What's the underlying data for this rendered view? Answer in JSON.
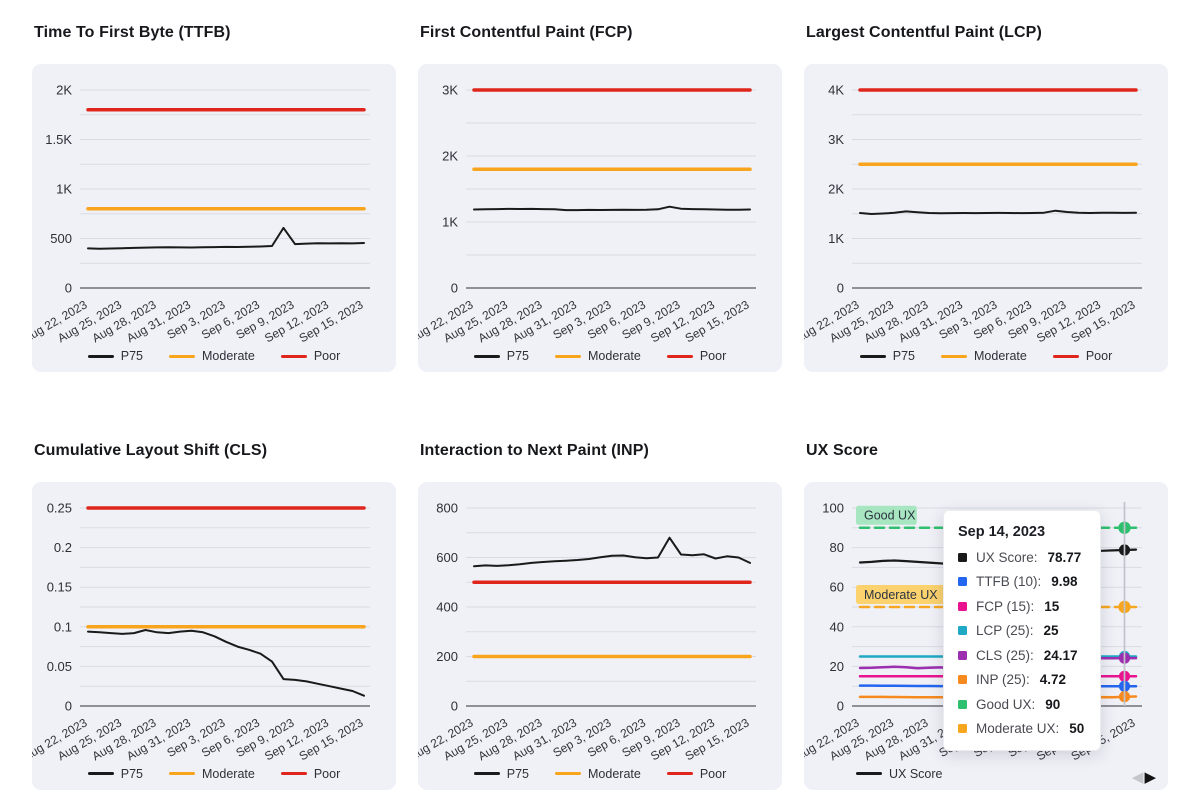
{
  "colors": {
    "panel_bg": "#f0f1f7",
    "grid": "#d9dbe4",
    "axis_zero": "#70707a",
    "crosshair": "#c0c3ca",
    "p75": "#1a1a1a",
    "moderate": "#f9a41d",
    "poor": "#e0261c",
    "good_ux": "#2fc06f",
    "moderate_ux": "#f7a61f",
    "ttfb_score": "#2465f0",
    "fcp_score": "#e91390",
    "lcp_score": "#1fa9c4",
    "cls_score": "#9c2fb0",
    "inp_score": "#f78a1e"
  },
  "x_tick_labels": [
    "Aug 22, 2023",
    "Aug 25, 2023",
    "Aug 28, 2023",
    "Aug 31, 2023",
    "Sep 3, 2023",
    "Sep 6, 2023",
    "Sep 9, 2023",
    "Sep 12, 2023",
    "Sep 15, 2023"
  ],
  "charts": [
    {
      "id": "ttfb",
      "title": "Time To First Byte (TTFB)",
      "type": "line",
      "ylim": [
        0,
        2000
      ],
      "minor_step": 250,
      "yticks": [
        {
          "v": 0,
          "t": "0"
        },
        {
          "v": 500,
          "t": "500"
        },
        {
          "v": 1000,
          "t": "1K"
        },
        {
          "v": 1500,
          "t": "1.5K"
        },
        {
          "v": 2000,
          "t": "2K"
        }
      ],
      "series": [
        {
          "name": "Poor",
          "color": "#e0261c",
          "const": 1800,
          "width": 3.5
        },
        {
          "name": "Moderate",
          "color": "#f9a41d",
          "const": 800,
          "width": 3.5
        },
        {
          "name": "P75",
          "color": "#1a1a1a",
          "width": 2,
          "values": [
            400,
            397,
            399,
            402,
            405,
            408,
            410,
            412,
            410,
            409,
            411,
            413,
            415,
            414,
            416,
            419,
            424,
            607,
            443,
            448,
            452,
            450,
            453,
            451,
            455
          ]
        }
      ],
      "legend": [
        {
          "label": "P75",
          "color": "#1a1a1a"
        },
        {
          "label": "Moderate",
          "color": "#f9a41d"
        },
        {
          "label": "Poor",
          "color": "#e0261c"
        }
      ]
    },
    {
      "id": "fcp",
      "title": "First Contentful Paint (FCP)",
      "type": "line",
      "ylim": [
        0,
        3000
      ],
      "minor_step": 500,
      "yticks": [
        {
          "v": 0,
          "t": "0"
        },
        {
          "v": 1000,
          "t": "1K"
        },
        {
          "v": 2000,
          "t": "2K"
        },
        {
          "v": 3000,
          "t": "3K"
        }
      ],
      "series": [
        {
          "name": "Poor",
          "color": "#e0261c",
          "const": 3000,
          "width": 3.5
        },
        {
          "name": "Moderate",
          "color": "#f9a41d",
          "const": 1800,
          "width": 3.5
        },
        {
          "name": "P75",
          "color": "#1a1a1a",
          "width": 2,
          "values": [
            1190,
            1193,
            1196,
            1198,
            1197,
            1198,
            1196,
            1194,
            1181,
            1180,
            1183,
            1182,
            1184,
            1186,
            1183,
            1185,
            1192,
            1232,
            1201,
            1196,
            1193,
            1190,
            1187,
            1185,
            1189
          ]
        }
      ],
      "legend": [
        {
          "label": "P75",
          "color": "#1a1a1a"
        },
        {
          "label": "Moderate",
          "color": "#f9a41d"
        },
        {
          "label": "Poor",
          "color": "#e0261c"
        }
      ]
    },
    {
      "id": "lcp",
      "title": "Largest Contentful Paint (LCP)",
      "type": "line",
      "ylim": [
        0,
        4000
      ],
      "minor_step": 500,
      "yticks": [
        {
          "v": 0,
          "t": "0"
        },
        {
          "v": 1000,
          "t": "1K"
        },
        {
          "v": 2000,
          "t": "2K"
        },
        {
          "v": 3000,
          "t": "3K"
        },
        {
          "v": 4000,
          "t": "4K"
        }
      ],
      "series": [
        {
          "name": "Poor",
          "color": "#e0261c",
          "const": 4000,
          "width": 3.5
        },
        {
          "name": "Moderate",
          "color": "#f9a41d",
          "const": 2500,
          "width": 3.5
        },
        {
          "name": "P75",
          "color": "#1a1a1a",
          "width": 2,
          "values": [
            1515,
            1495,
            1505,
            1520,
            1548,
            1532,
            1516,
            1512,
            1514,
            1516,
            1513,
            1515,
            1518,
            1516,
            1514,
            1516,
            1522,
            1562,
            1535,
            1522,
            1516,
            1519,
            1521,
            1518,
            1521
          ]
        }
      ],
      "legend": [
        {
          "label": "P75",
          "color": "#1a1a1a"
        },
        {
          "label": "Moderate",
          "color": "#f9a41d"
        },
        {
          "label": "Poor",
          "color": "#e0261c"
        }
      ]
    },
    {
      "id": "cls",
      "title": "Cumulative Layout Shift (CLS)",
      "type": "line",
      "ylim": [
        0,
        0.25
      ],
      "minor_step": 0.025,
      "yticks": [
        {
          "v": 0,
          "t": "0"
        },
        {
          "v": 0.05,
          "t": "0.05"
        },
        {
          "v": 0.1,
          "t": "0.1"
        },
        {
          "v": 0.15,
          "t": "0.15"
        },
        {
          "v": 0.2,
          "t": "0.2"
        },
        {
          "v": 0.25,
          "t": "0.25"
        }
      ],
      "series": [
        {
          "name": "Poor",
          "color": "#e0261c",
          "const": 0.25,
          "width": 3.5
        },
        {
          "name": "Moderate",
          "color": "#f9a41d",
          "const": 0.1,
          "width": 3.5
        },
        {
          "name": "P75",
          "color": "#1a1a1a",
          "width": 2,
          "values": [
            0.094,
            0.093,
            0.092,
            0.091,
            0.092,
            0.096,
            0.093,
            0.092,
            0.094,
            0.095,
            0.093,
            0.088,
            0.081,
            0.075,
            0.071,
            0.066,
            0.056,
            0.034,
            0.033,
            0.031,
            0.028,
            0.025,
            0.022,
            0.019,
            0.013
          ]
        }
      ],
      "legend": [
        {
          "label": "P75",
          "color": "#1a1a1a"
        },
        {
          "label": "Moderate",
          "color": "#f9a41d"
        },
        {
          "label": "Poor",
          "color": "#e0261c"
        }
      ]
    },
    {
      "id": "inp",
      "title": "Interaction to Next Paint (INP)",
      "type": "line",
      "ylim": [
        0,
        800
      ],
      "minor_step": 100,
      "yticks": [
        {
          "v": 0,
          "t": "0"
        },
        {
          "v": 200,
          "t": "200"
        },
        {
          "v": 400,
          "t": "400"
        },
        {
          "v": 600,
          "t": "600"
        },
        {
          "v": 800,
          "t": "800"
        }
      ],
      "series": [
        {
          "name": "Poor",
          "color": "#e0261c",
          "const": 500,
          "width": 3.5
        },
        {
          "name": "Moderate",
          "color": "#f9a41d",
          "const": 200,
          "width": 3.5
        },
        {
          "name": "P75",
          "color": "#1a1a1a",
          "width": 2,
          "values": [
            565,
            568,
            566,
            569,
            573,
            578,
            582,
            585,
            587,
            590,
            594,
            601,
            607,
            608,
            601,
            597,
            600,
            680,
            612,
            609,
            613,
            596,
            605,
            600,
            578
          ]
        }
      ],
      "legend": [
        {
          "label": "P75",
          "color": "#1a1a1a"
        },
        {
          "label": "Moderate",
          "color": "#f9a41d"
        },
        {
          "label": "Poor",
          "color": "#e0261c"
        }
      ]
    },
    {
      "id": "ux",
      "title": "UX Score",
      "type": "line",
      "ylim": [
        0,
        100
      ],
      "minor_step": 10,
      "yticks": [
        {
          "v": 0,
          "t": "0"
        },
        {
          "v": 20,
          "t": "20"
        },
        {
          "v": 40,
          "t": "40"
        },
        {
          "v": 60,
          "t": "60"
        },
        {
          "v": 80,
          "t": "80"
        },
        {
          "v": 100,
          "t": "100"
        }
      ],
      "series": [
        {
          "name": "Good UX",
          "color": "#2fc06f",
          "const": 90,
          "width": 2.5,
          "dashed": true,
          "marker": true
        },
        {
          "name": "Moderate UX",
          "color": "#f7a61f",
          "const": 50,
          "width": 2.5,
          "dashed": true,
          "marker": true
        },
        {
          "name": "LCP (25)",
          "color": "#1fa9c4",
          "width": 2.5,
          "marker": true,
          "values": [
            25,
            25,
            25,
            25,
            25,
            25,
            25,
            25,
            25,
            25,
            25,
            25,
            25,
            25,
            25,
            25,
            25,
            25,
            25,
            25,
            25,
            25,
            25,
            25,
            25
          ]
        },
        {
          "name": "CLS (25)",
          "color": "#9c2fb0",
          "width": 2.5,
          "marker": true,
          "values": [
            19.2,
            19.3,
            19.6,
            19.8,
            19.6,
            19.1,
            19.3,
            19.5,
            19.2,
            19.0,
            19.3,
            19.9,
            20.8,
            21.6,
            22.2,
            22.8,
            23.6,
            24.0,
            24.05,
            24.08,
            24.1,
            24.12,
            24.15,
            24.17,
            24.2
          ]
        },
        {
          "name": "FCP (15)",
          "color": "#e91390",
          "width": 2.5,
          "marker": true,
          "values": [
            15,
            15,
            15,
            15,
            15,
            15,
            15,
            15,
            15,
            15,
            15,
            15,
            15,
            15,
            15,
            15,
            15,
            15,
            15,
            15,
            15,
            15,
            15,
            15,
            15
          ]
        },
        {
          "name": "TTFB (10)",
          "color": "#2465f0",
          "width": 2.5,
          "marker": true,
          "values": [
            10.3,
            10.3,
            10.25,
            10.2,
            10.15,
            10.1,
            10.1,
            10.05,
            10.0,
            10.0,
            10.0,
            10.0,
            10.0,
            10.0,
            10.0,
            9.95,
            9.95,
            9.9,
            9.92,
            9.94,
            9.95,
            9.96,
            9.97,
            9.98,
            9.98
          ]
        },
        {
          "name": "INP (25)",
          "color": "#f78a1e",
          "width": 2.5,
          "marker": true,
          "values": [
            4.6,
            4.62,
            4.58,
            4.55,
            4.5,
            4.45,
            4.4,
            4.38,
            4.35,
            4.3,
            4.28,
            4.25,
            4.22,
            4.2,
            4.25,
            4.3,
            4.28,
            3.95,
            4.35,
            4.4,
            4.38,
            4.5,
            4.45,
            4.72,
            4.8
          ]
        },
        {
          "name": "UX Score",
          "color": "#1a1a1a",
          "width": 2.2,
          "marker": true,
          "values": [
            72.5,
            72.8,
            73.3,
            73.5,
            73.2,
            72.8,
            72.4,
            72.0,
            71.6,
            71.3,
            71.2,
            71.4,
            71.8,
            72.3,
            72.9,
            73.8,
            74.8,
            75.9,
            76.8,
            77.5,
            78.0,
            78.4,
            78.6,
            78.77,
            79.0
          ]
        }
      ],
      "badges": [
        {
          "label": "Good UX",
          "value": 90,
          "bg": "#a7e6c0"
        },
        {
          "label": "Moderate UX",
          "value": 50,
          "bg": "#fbd26e"
        }
      ],
      "crosshair": {
        "index": 23,
        "date": "Sep 14, 2023"
      },
      "legend": [
        {
          "label": "UX Score",
          "color": "#1a1a1a"
        }
      ],
      "legend_align": "left",
      "has_nav": true
    }
  ],
  "tooltip": {
    "title": "Sep 14, 2023",
    "rows": [
      {
        "label": "UX Score",
        "value": "78.77",
        "color": "#1a1a1a"
      },
      {
        "label": "TTFB (10)",
        "value": "9.98",
        "color": "#2465f0"
      },
      {
        "label": "FCP (15)",
        "value": "15",
        "color": "#e91390"
      },
      {
        "label": "LCP (25)",
        "value": "25",
        "color": "#1fa9c4"
      },
      {
        "label": "CLS (25)",
        "value": "24.17",
        "color": "#9c2fb0"
      },
      {
        "label": "INP (25)",
        "value": "4.72",
        "color": "#f78a1e"
      },
      {
        "label": "Good UX",
        "value": "90",
        "color": "#2fc06f"
      },
      {
        "label": "Moderate UX",
        "value": "50",
        "color": "#f7a61f"
      }
    ]
  },
  "nav": {
    "prev": "◀",
    "next": "▶"
  }
}
